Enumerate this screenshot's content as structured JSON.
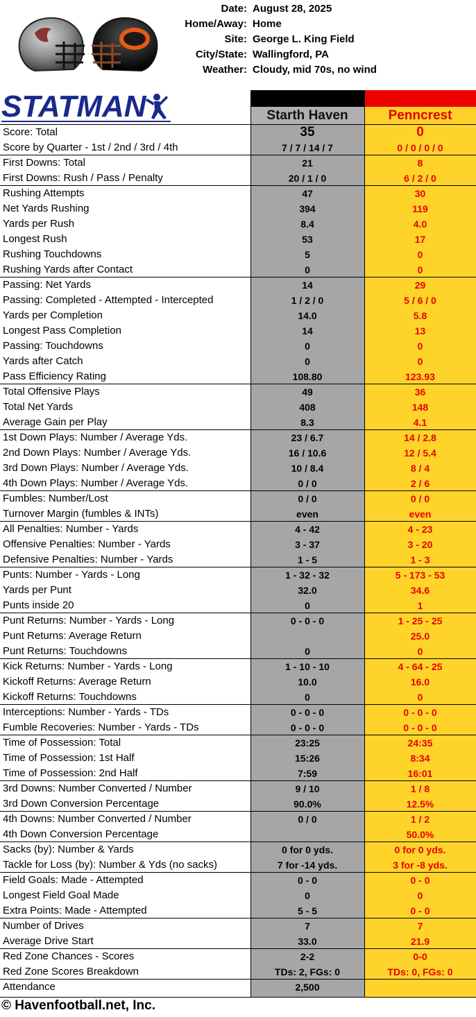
{
  "game_info": [
    {
      "label": "Date:",
      "value": "August 28, 2025"
    },
    {
      "label": "Home/Away:",
      "value": "Home"
    },
    {
      "label": "Site:",
      "value": "George L. King Field"
    },
    {
      "label": "City/State:",
      "value": "Wallingford, PA"
    },
    {
      "label": "Weather:",
      "value": "Cloudy, mid 70s, no wind"
    }
  ],
  "logo_text": "STATMAN",
  "teams": {
    "home": "Starth Haven",
    "away": "Penncrest"
  },
  "colors": {
    "home_bg": "#a6a6a6",
    "away_bg": "#ffd42a",
    "away_text": "#e60000",
    "away_header": "#ee0000"
  },
  "rows": [
    {
      "label": "Score:  Total",
      "home": "35",
      "away": "0",
      "big": true
    },
    {
      "label": "Score by Quarter - 1st / 2nd / 3rd / 4th",
      "home": "7 / 7 / 14 / 7",
      "away": "0 / 0 / 0 / 0"
    },
    {
      "label": "First Downs:  Total",
      "home": "21",
      "away": "8",
      "sep": true
    },
    {
      "label": "First Downs:  Rush / Pass / Penalty",
      "home": "20 / 1 / 0",
      "away": "6 / 2 / 0"
    },
    {
      "label": "Rushing Attempts",
      "home": "47",
      "away": "30",
      "sep": true
    },
    {
      "label": "Net Yards Rushing",
      "home": "394",
      "away": "119"
    },
    {
      "label": "Yards per Rush",
      "home": "8.4",
      "away": "4.0"
    },
    {
      "label": "Longest Rush",
      "home": "53",
      "away": "17"
    },
    {
      "label": "Rushing Touchdowns",
      "home": "5",
      "away": "0"
    },
    {
      "label": "Rushing Yards after Contact",
      "home": "0",
      "away": "0"
    },
    {
      "label": "Passing:  Net Yards",
      "home": "14",
      "away": "29",
      "sep": true
    },
    {
      "label": "Passing:  Completed - Attempted - Intercepted",
      "home": "1 / 2 / 0",
      "away": "5 / 6 / 0"
    },
    {
      "label": "Yards per Completion",
      "home": "14.0",
      "away": "5.8"
    },
    {
      "label": "Longest Pass Completion",
      "home": "14",
      "away": "13"
    },
    {
      "label": "Passing:  Touchdowns",
      "home": "0",
      "away": "0"
    },
    {
      "label": "Yards after Catch",
      "home": "0",
      "away": "0"
    },
    {
      "label": "Pass Efficiency Rating",
      "home": "108.80",
      "away": "123.93"
    },
    {
      "label": "Total Offensive Plays",
      "home": "49",
      "away": "36",
      "sep": true
    },
    {
      "label": "Total Net Yards",
      "home": "408",
      "away": "148"
    },
    {
      "label": "Average Gain per Play",
      "home": "8.3",
      "away": "4.1"
    },
    {
      "label": "1st Down Plays:  Number / Average Yds.",
      "home": "23 / 6.7",
      "away": "14 / 2.8",
      "sep": true
    },
    {
      "label": "2nd Down Plays:  Number / Average Yds.",
      "home": "16 / 10.6",
      "away": "12 / 5.4"
    },
    {
      "label": "3rd Down Plays:  Number / Average Yds.",
      "home": "10 / 8.4",
      "away": "8 / 4"
    },
    {
      "label": "4th Down Plays:  Number / Average Yds.",
      "home": "0 / 0",
      "away": "2 / 6"
    },
    {
      "label": "Fumbles:  Number/Lost",
      "home": "0 / 0",
      "away": "0 / 0",
      "sep": true
    },
    {
      "label": "Turnover Margin (fumbles & INTs)",
      "home": "even",
      "away": "even"
    },
    {
      "label": "All Penalties:  Number - Yards",
      "home": "4 - 42",
      "away": "4 - 23",
      "sep": true
    },
    {
      "label": "Offensive Penalties:  Number - Yards",
      "home": "3 - 37",
      "away": "3 - 20"
    },
    {
      "label": "Defensive Penalties:  Number - Yards",
      "home": "1 - 5",
      "away": "1 - 3"
    },
    {
      "label": "Punts:  Number - Yards - Long",
      "home": "1 - 32 - 32",
      "away": "5 - 173 - 53",
      "sep": true
    },
    {
      "label": "Yards per Punt",
      "home": "32.0",
      "away": "34.6"
    },
    {
      "label": "Punts inside 20",
      "home": "0",
      "away": "1"
    },
    {
      "label": "Punt Returns:  Number - Yards - Long",
      "home": "0 - 0 - 0",
      "away": "1 - 25 - 25",
      "sep": true
    },
    {
      "label": "Punt Returns:  Average Return",
      "home": "",
      "away": "25.0"
    },
    {
      "label": "Punt Returns:  Touchdowns",
      "home": "0",
      "away": "0"
    },
    {
      "label": "Kick Returns:  Number - Yards - Long",
      "home": "1 - 10 - 10",
      "away": "4 - 64 - 25",
      "sep": true
    },
    {
      "label": "Kickoff Returns:  Average Return",
      "home": "10.0",
      "away": "16.0"
    },
    {
      "label": "Kickoff Returns:  Touchdowns",
      "home": "0",
      "away": "0"
    },
    {
      "label": "Interceptions: Number - Yards - TDs",
      "home": "0 - 0 - 0",
      "away": "0 - 0 - 0",
      "sep": true
    },
    {
      "label": "Fumble Recoveries: Number - Yards - TDs",
      "home": "0 - 0 - 0",
      "away": "0 - 0 - 0"
    },
    {
      "label": "Time of Possession:  Total",
      "home": "23:25",
      "away": "24:35",
      "sep": true
    },
    {
      "label": "Time of Possession:  1st Half",
      "home": "15:26",
      "away": "8:34"
    },
    {
      "label": "Time of Possession:  2nd Half",
      "home": "7:59",
      "away": "16:01"
    },
    {
      "label": "3rd Downs:  Number Converted / Number",
      "home": "9 / 10",
      "away": "1 / 8",
      "sep": true
    },
    {
      "label": "3rd Down Conversion Percentage",
      "home": "90.0%",
      "away": "12.5%"
    },
    {
      "label": "4th Downs:  Number Converted / Number",
      "home": "0 / 0",
      "away": "1 / 2",
      "sep": true
    },
    {
      "label": "4th Down Conversion Percentage",
      "home": "",
      "away": "50.0%"
    },
    {
      "label": "Sacks (by):  Number & Yards",
      "home": "0 for 0 yds.",
      "away": "0 for 0 yds.",
      "sep": true
    },
    {
      "label": "Tackle for Loss (by): Number & Yds (no sacks)",
      "home": "7 for -14 yds.",
      "away": "3 for -8 yds."
    },
    {
      "label": "Field Goals:  Made - Attempted",
      "home": "0 - 0",
      "away": "0 - 0",
      "sep": true
    },
    {
      "label": "Longest Field Goal Made",
      "home": "0",
      "away": "0"
    },
    {
      "label": "Extra Points:  Made - Attempted",
      "home": "5 - 5",
      "away": "0 - 0"
    },
    {
      "label": "Number of Drives",
      "home": "7",
      "away": "7",
      "sep": true
    },
    {
      "label": "Average Drive Start",
      "home": "33.0",
      "away": "21.9"
    },
    {
      "label": "Red Zone Chances - Scores",
      "home": "2-2",
      "away": "0-0",
      "sep": true
    },
    {
      "label": "Red Zone Scores Breakdown",
      "home": "TDs: 2, FGs: 0",
      "away": "TDs: 0, FGs: 0"
    },
    {
      "label": "Attendance",
      "home": "2,500",
      "away": "",
      "sep": true
    }
  ],
  "footer": "© Havenfootball.net, Inc."
}
